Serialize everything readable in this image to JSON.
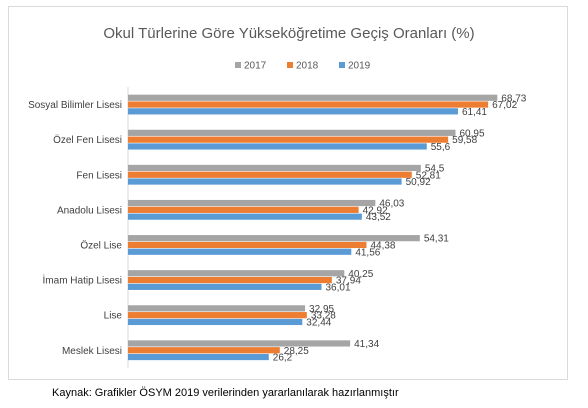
{
  "chart_data": {
    "type": "bar",
    "orientation": "horizontal",
    "title": "Okul Türlerine Göre Yükseköğretime Geçiş Oranları (%)",
    "categories": [
      "Sosyal Bilimler Lisesi",
      "Özel Fen Lisesi",
      "Fen Lisesi",
      "Anadolu Lisesi",
      "Özel Lise",
      "İmam Hatip Lisesi",
      "Lise",
      "Meslek Lisesi"
    ],
    "series": [
      {
        "name": "2017",
        "color": "#a5a5a5",
        "values": [
          68.73,
          60.95,
          54.5,
          46.03,
          54.31,
          40.25,
          32.95,
          41.34
        ],
        "labels": [
          "68,73",
          "60,95",
          "54,5",
          "46,03",
          "54,31",
          "40,25",
          "32,95",
          "41,34"
        ]
      },
      {
        "name": "2018",
        "color": "#ed7d31",
        "values": [
          67.02,
          59.58,
          52.81,
          42.92,
          44.38,
          37.94,
          33.28,
          28.25
        ],
        "labels": [
          "67,02",
          "59,58",
          "52,81",
          "42,92",
          "44,38",
          "37,94",
          "33,28",
          "28,25"
        ]
      },
      {
        "name": "2019",
        "color": "#5b9bd5",
        "values": [
          61.41,
          55.6,
          50.92,
          43.52,
          41.56,
          36.01,
          32.44,
          26.2
        ],
        "labels": [
          "61,41",
          "55,6",
          "50,92",
          "43,52",
          "41,56",
          "36,01",
          "32,44",
          "26,2"
        ]
      }
    ],
    "xlim": [
      0,
      75
    ],
    "grid": false,
    "legend": "top-center"
  },
  "caption": "Kaynak: Grafikler ÖSYM 2019 verilerinden yararlanılarak hazırlanmıştır"
}
